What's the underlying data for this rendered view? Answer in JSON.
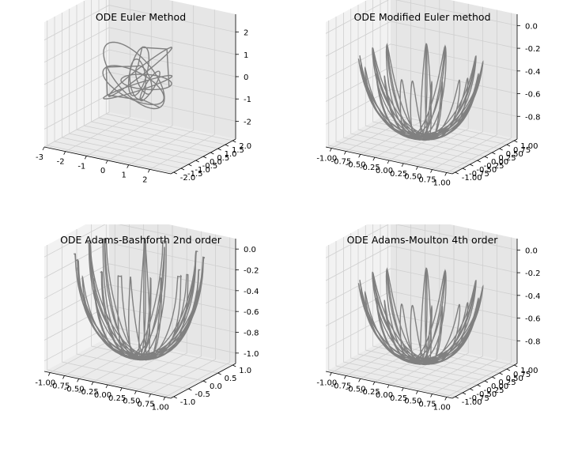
{
  "figure": {
    "description_free": true
  },
  "chart_data": [
    {
      "type": "line3d",
      "title": "ODE Euler Method",
      "xlim": [
        -3,
        3
      ],
      "ylim": [
        -2.2,
        2.2
      ],
      "zlim": [
        -2.8,
        2.8
      ],
      "x_ticks": [
        "-3",
        "-2",
        "-1",
        "0",
        "1",
        "2"
      ],
      "x_tick_values": [
        -3,
        -2,
        -1,
        0,
        1,
        2
      ],
      "y_ticks": [
        "-2.0",
        "-1.5",
        "-1.0",
        "-0.5",
        "0.0",
        "0.5",
        "1.0",
        "1.5",
        "2.0"
      ],
      "y_tick_values": [
        -2.0,
        -1.5,
        -1.0,
        -0.5,
        0.0,
        0.5,
        1.0,
        1.5,
        2.0
      ],
      "z_ticks": [
        "-2",
        "-1",
        "0",
        "1",
        "2"
      ],
      "z_tick_values": [
        -2,
        -1,
        0,
        1,
        2
      ],
      "curve": "chaotic-rings",
      "line_color": "#808080",
      "grid": true
    },
    {
      "type": "line3d",
      "title": "ODE Modified Euler method",
      "xlim": [
        -1.1,
        1.1
      ],
      "ylim": [
        -1.1,
        1.1
      ],
      "zlim": [
        -1.0,
        0.1
      ],
      "x_ticks": [
        "-1.00",
        "-0.75",
        "-0.50",
        "-0.25",
        "0.00",
        "0.25",
        "0.50",
        "0.75",
        "1.00"
      ],
      "x_tick_values": [
        -1.0,
        -0.75,
        -0.5,
        -0.25,
        0.0,
        0.25,
        0.5,
        0.75,
        1.0
      ],
      "y_ticks": [
        "-1.00",
        "-0.75",
        "-0.50",
        "-0.25",
        "0.00",
        "0.25",
        "0.50",
        "0.75",
        "1.00"
      ],
      "y_tick_values": [
        -1.0,
        -0.75,
        -0.5,
        -0.25,
        0.0,
        0.25,
        0.5,
        0.75,
        1.0
      ],
      "z_ticks": [
        "-0.8",
        "-0.6",
        "-0.4",
        "-0.2",
        "0.0"
      ],
      "z_tick_values": [
        -0.8,
        -0.6,
        -0.4,
        -0.2,
        0.0
      ],
      "curve": "spherical-pendulum",
      "line_color": "#808080",
      "grid": true
    },
    {
      "type": "line3d",
      "title": "ODE Adams-Bashforth 2nd order",
      "xlim": [
        -1.1,
        1.1
      ],
      "ylim": [
        -1.1,
        1.1
      ],
      "zlim": [
        -1.1,
        0.1
      ],
      "x_ticks": [
        "-1.00",
        "-0.75",
        "-0.50",
        "-0.25",
        "0.00",
        "0.25",
        "0.50",
        "0.75",
        "1.00"
      ],
      "x_tick_values": [
        -1.0,
        -0.75,
        -0.5,
        -0.25,
        0.0,
        0.25,
        0.5,
        0.75,
        1.0
      ],
      "y_ticks": [
        "-1.0",
        "-0.5",
        "0.0",
        "0.5",
        "1.0"
      ],
      "y_tick_values": [
        -1.0,
        -0.5,
        0.0,
        0.5,
        1.0
      ],
      "z_ticks": [
        "-1.0",
        "-0.8",
        "-0.6",
        "-0.4",
        "-0.2",
        "0.0"
      ],
      "z_tick_values": [
        -1.0,
        -0.8,
        -0.6,
        -0.4,
        -0.2,
        0.0
      ],
      "curve": "spherical-pendulum-drift",
      "line_color": "#808080",
      "grid": true
    },
    {
      "type": "line3d",
      "title": "ODE Adams-Moulton 4th order",
      "xlim": [
        -1.1,
        1.1
      ],
      "ylim": [
        -1.1,
        1.1
      ],
      "zlim": [
        -1.0,
        0.1
      ],
      "x_ticks": [
        "-1.00",
        "-0.75",
        "-0.50",
        "-0.25",
        "0.00",
        "0.25",
        "0.50",
        "0.75",
        "1.00"
      ],
      "x_tick_values": [
        -1.0,
        -0.75,
        -0.5,
        -0.25,
        0.0,
        0.25,
        0.5,
        0.75,
        1.0
      ],
      "y_ticks": [
        "-1.00",
        "-0.75",
        "-0.50",
        "-0.25",
        "0.00",
        "0.25",
        "0.50",
        "0.75",
        "1.00"
      ],
      "y_tick_values": [
        -1.0,
        -0.75,
        -0.5,
        -0.25,
        0.0,
        0.25,
        0.5,
        0.75,
        1.0
      ],
      "z_ticks": [
        "-0.8",
        "-0.6",
        "-0.4",
        "-0.2",
        "0.0"
      ],
      "z_tick_values": [
        -0.8,
        -0.6,
        -0.4,
        -0.2,
        0.0
      ],
      "curve": "spherical-pendulum",
      "line_color": "#808080",
      "grid": true
    }
  ],
  "colors": {
    "pane_left": "#f2f2f2",
    "pane_right": "#e6e6e6",
    "pane_floor": "#ebebeb",
    "grid": "#cfcfcf",
    "line": "#808080"
  }
}
